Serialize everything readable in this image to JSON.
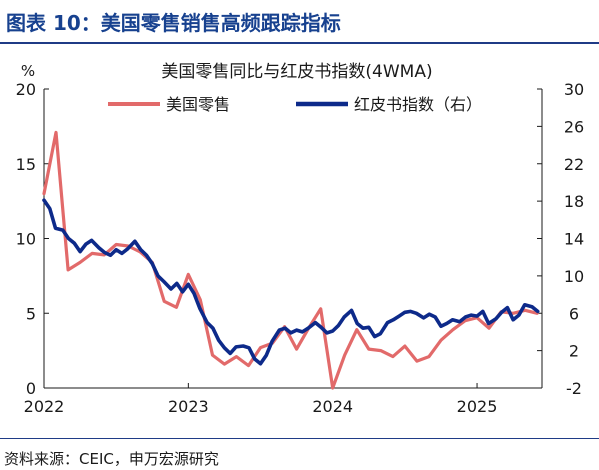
{
  "header": {
    "title": "图表 10：美国零售销售高频跟踪指标"
  },
  "footer": {
    "source": "资料来源：CEIC，申万宏源研究"
  },
  "chart_data": {
    "type": "line",
    "title": "美国零售同比与红皮书指数(4WMA)",
    "left_unit": "%",
    "xlim": [
      2022.0,
      2025.45
    ],
    "x_ticks": [
      2022,
      2023,
      2024,
      2025
    ],
    "x_tick_labels": [
      "2022",
      "2023",
      "2024",
      "2025"
    ],
    "y_left": {
      "lim": [
        0,
        20
      ],
      "ticks": [
        0,
        5,
        10,
        15,
        20
      ],
      "tick_labels": [
        "0",
        "5",
        "10",
        "15",
        "20"
      ]
    },
    "y_right": {
      "lim": [
        -2,
        30
      ],
      "ticks": [
        -2,
        2,
        6,
        10,
        14,
        18,
        22,
        26,
        30
      ],
      "tick_labels": [
        "-2",
        "2",
        "6",
        "10",
        "14",
        "18",
        "22",
        "26",
        "30"
      ]
    },
    "legend_position": "top",
    "colors": {
      "retail": "#e26a6a",
      "redbook": "#0d2a8a",
      "axis": "#1a1a1a"
    },
    "series": [
      {
        "name": "美国零售",
        "axis": "left",
        "x": [
          2022.0,
          2022.083,
          2022.167,
          2022.25,
          2022.333,
          2022.417,
          2022.5,
          2022.583,
          2022.667,
          2022.75,
          2022.833,
          2022.917,
          2023.0,
          2023.083,
          2023.167,
          2023.25,
          2023.333,
          2023.417,
          2023.5,
          2023.583,
          2023.667,
          2023.75,
          2023.833,
          2023.917,
          2024.0,
          2024.083,
          2024.167,
          2024.25,
          2024.333,
          2024.417,
          2024.5,
          2024.583,
          2024.667,
          2024.75,
          2024.833,
          2024.917,
          2025.0,
          2025.083,
          2025.167,
          2025.25,
          2025.333,
          2025.417
        ],
        "values": [
          13.0,
          17.1,
          7.9,
          8.4,
          9.0,
          8.9,
          9.6,
          9.5,
          9.1,
          8.4,
          5.8,
          5.4,
          7.6,
          5.9,
          2.2,
          1.6,
          2.1,
          1.5,
          2.7,
          3.0,
          4.1,
          2.6,
          4.0,
          5.3,
          0.0,
          2.2,
          3.9,
          2.6,
          2.5,
          2.1,
          2.8,
          1.8,
          2.1,
          3.2,
          3.9,
          4.5,
          4.7,
          4.0,
          5.1,
          5.0,
          5.2,
          5.0
        ]
      },
      {
        "name": "红皮书指数（右）",
        "axis": "right",
        "x": [
          2022.0,
          2022.04,
          2022.08,
          2022.13,
          2022.17,
          2022.21,
          2022.25,
          2022.29,
          2022.33,
          2022.38,
          2022.42,
          2022.46,
          2022.5,
          2022.54,
          2022.58,
          2022.63,
          2022.67,
          2022.71,
          2022.75,
          2022.79,
          2022.83,
          2022.88,
          2022.92,
          2022.96,
          2023.0,
          2023.04,
          2023.08,
          2023.13,
          2023.17,
          2023.21,
          2023.25,
          2023.29,
          2023.33,
          2023.38,
          2023.42,
          2023.46,
          2023.5,
          2023.54,
          2023.58,
          2023.63,
          2023.67,
          2023.71,
          2023.75,
          2023.79,
          2023.83,
          2023.88,
          2023.92,
          2023.96,
          2024.0,
          2024.04,
          2024.08,
          2024.13,
          2024.17,
          2024.21,
          2024.25,
          2024.29,
          2024.33,
          2024.38,
          2024.42,
          2024.46,
          2024.5,
          2024.54,
          2024.58,
          2024.63,
          2024.67,
          2024.71,
          2024.75,
          2024.79,
          2024.83,
          2024.88,
          2024.92,
          2024.96,
          2025.0,
          2025.04,
          2025.08,
          2025.13,
          2025.17,
          2025.21,
          2025.25,
          2025.29,
          2025.33,
          2025.38,
          2025.42
        ],
        "values": [
          18.1,
          17.2,
          15.1,
          14.9,
          14.0,
          13.5,
          12.6,
          13.4,
          13.8,
          13.0,
          12.5,
          12.2,
          12.8,
          12.4,
          12.9,
          13.7,
          12.8,
          12.2,
          11.3,
          10.0,
          9.4,
          8.6,
          9.2,
          8.3,
          9.1,
          8.1,
          6.5,
          5.0,
          4.4,
          3.1,
          2.3,
          1.7,
          2.4,
          2.5,
          2.3,
          1.1,
          0.6,
          1.5,
          3.0,
          4.2,
          4.4,
          3.9,
          4.2,
          4.0,
          4.4,
          5.0,
          4.5,
          3.9,
          4.1,
          4.7,
          5.6,
          6.3,
          4.9,
          4.4,
          4.5,
          3.5,
          3.8,
          5.0,
          5.3,
          5.7,
          6.1,
          6.2,
          6.0,
          5.5,
          5.9,
          5.6,
          4.6,
          4.9,
          5.3,
          5.1,
          5.6,
          5.8,
          5.7,
          6.2,
          4.9,
          5.4,
          6.1,
          6.6,
          5.3,
          5.8,
          6.9,
          6.7,
          6.2
        ]
      }
    ]
  }
}
